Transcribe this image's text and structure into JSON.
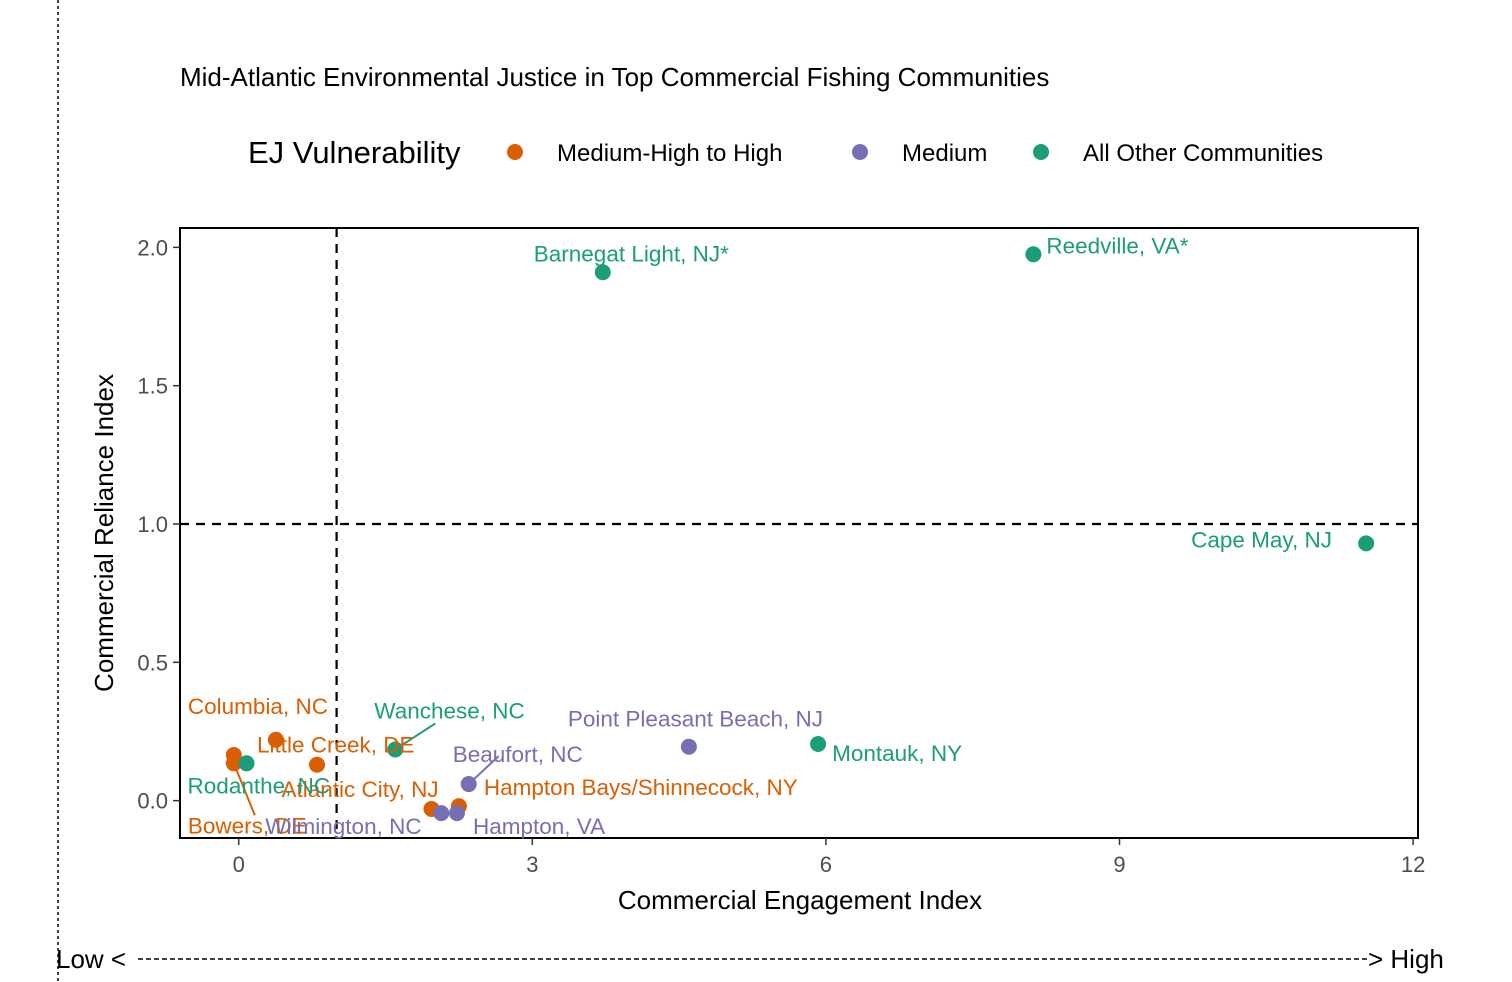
{
  "chart_data": {
    "type": "scatter",
    "title": "Mid-Atlantic Environmental Justice in Top Commercial Fishing Communities",
    "xlabel": "Commercial Engagement Index",
    "ylabel": "Commercial Reliance Index",
    "xlim": [
      -0.6,
      12.05
    ],
    "ylim": [
      -0.135,
      2.07
    ],
    "x_ticks": [
      0,
      3,
      6,
      9,
      12
    ],
    "y_ticks": [
      0.0,
      0.5,
      1.0,
      1.5,
      2.0
    ],
    "x_tick_labels": [
      "0",
      "3",
      "6",
      "9",
      "12"
    ],
    "y_tick_labels": [
      "0.0",
      "0.5",
      "1.0",
      "1.5",
      "2.0"
    ],
    "reference_lines": {
      "x": 1,
      "y": 1,
      "style": "dashed"
    },
    "grid": false,
    "legend": {
      "title": "EJ Vulnerability",
      "placement": "top",
      "entries": [
        {
          "label": "Medium-High to High",
          "color": "#d95f02"
        },
        {
          "label": "Medium",
          "color": "#7570b3"
        },
        {
          "label": "All Other Communities",
          "color": "#1b9e77"
        }
      ]
    },
    "series": [
      {
        "name": "Medium-High to High",
        "color": "#d95f02",
        "points": [
          {
            "x": 0.38,
            "y": 0.22,
            "label": "Columbia, NC"
          },
          {
            "x": 0.8,
            "y": 0.13,
            "label": "Little Creek, DE"
          },
          {
            "x": -0.05,
            "y": 0.165,
            "label": ""
          },
          {
            "x": -0.05,
            "y": 0.135,
            "label": "Bowers, DE"
          },
          {
            "x": 1.97,
            "y": -0.03,
            "label": "Atlantic City, NJ"
          },
          {
            "x": 2.25,
            "y": -0.02,
            "label": "Hampton Bays/Shinnecock, NY"
          }
        ]
      },
      {
        "name": "Medium",
        "color": "#7570b3",
        "points": [
          {
            "x": 4.6,
            "y": 0.195,
            "label": "Point Pleasant Beach, NJ"
          },
          {
            "x": 2.35,
            "y": 0.06,
            "label": "Beaufort, NC"
          },
          {
            "x": 2.07,
            "y": -0.045,
            "label": "Wilmington, NC"
          },
          {
            "x": 2.23,
            "y": -0.045,
            "label": "Hampton, VA"
          }
        ]
      },
      {
        "name": "All Other Communities",
        "color": "#1b9e77",
        "points": [
          {
            "x": 3.72,
            "y": 1.91,
            "label": "Barnegat Light, NJ*"
          },
          {
            "x": 8.12,
            "y": 1.975,
            "label": "Reedville, VA*"
          },
          {
            "x": 11.52,
            "y": 0.93,
            "label": "Cape May, NJ"
          },
          {
            "x": 5.92,
            "y": 0.205,
            "label": "Montauk, NY"
          },
          {
            "x": 1.6,
            "y": 0.185,
            "label": "Wanchese, NC"
          },
          {
            "x": 0.08,
            "y": 0.135,
            "label": "Rodanthe, NC"
          }
        ]
      }
    ]
  },
  "footer": {
    "low_label": "Low <",
    "high_label": "> High"
  }
}
